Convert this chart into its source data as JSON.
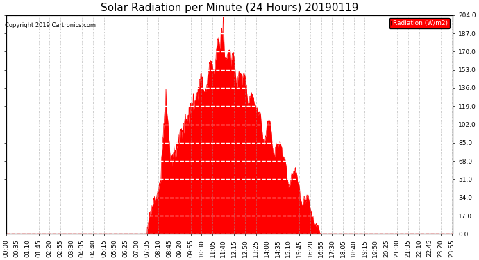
{
  "title": "Solar Radiation per Minute (24 Hours) 20190119",
  "copyright_text": "Copyright 2019 Cartronics.com",
  "legend_label": "Radiation (W/m2)",
  "ylim": [
    0.0,
    204.0
  ],
  "yticks": [
    0.0,
    17.0,
    34.0,
    51.0,
    68.0,
    85.0,
    102.0,
    119.0,
    136.0,
    153.0,
    170.0,
    187.0,
    204.0
  ],
  "background_color": "#ffffff",
  "fill_color": "#ff0000",
  "line_color": "#cc0000",
  "dashed_zero_color": "#ff0000",
  "title_fontsize": 11,
  "tick_fontsize": 6.5,
  "legend_bg_color": "#ff0000",
  "legend_text_color": "#ffffff",
  "grid_h_color": "#ffffff",
  "grid_v_color": "#999999"
}
